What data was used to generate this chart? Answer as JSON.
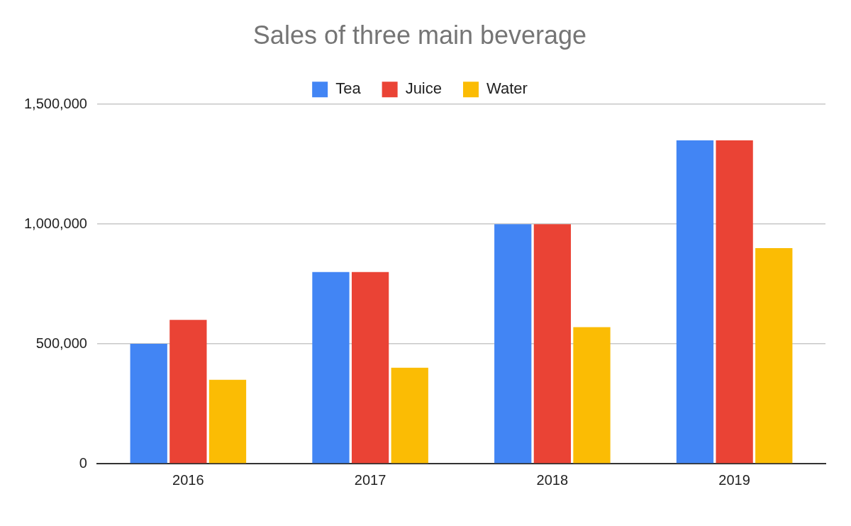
{
  "chart_data": {
    "type": "bar",
    "title": "Sales of three main beverage",
    "categories": [
      "2016",
      "2017",
      "2018",
      "2019"
    ],
    "series": [
      {
        "name": "Tea",
        "color": "#4285f4",
        "values": [
          500000,
          800000,
          1000000,
          1350000
        ]
      },
      {
        "name": "Juice",
        "color": "#ea4335",
        "values": [
          600000,
          800000,
          1000000,
          1350000
        ]
      },
      {
        "name": "Water",
        "color": "#fbbc04",
        "values": [
          350000,
          400000,
          570000,
          900000
        ]
      }
    ],
    "ylim": [
      0,
      1500000
    ],
    "yticks": [
      0,
      {
        "value": 500000,
        "label": "500,000"
      },
      {
        "value": 1000000,
        "label": "1,000,000"
      },
      {
        "value": 1500000,
        "label": "1,500,000"
      }
    ],
    "grid": "y",
    "legend": "top"
  }
}
